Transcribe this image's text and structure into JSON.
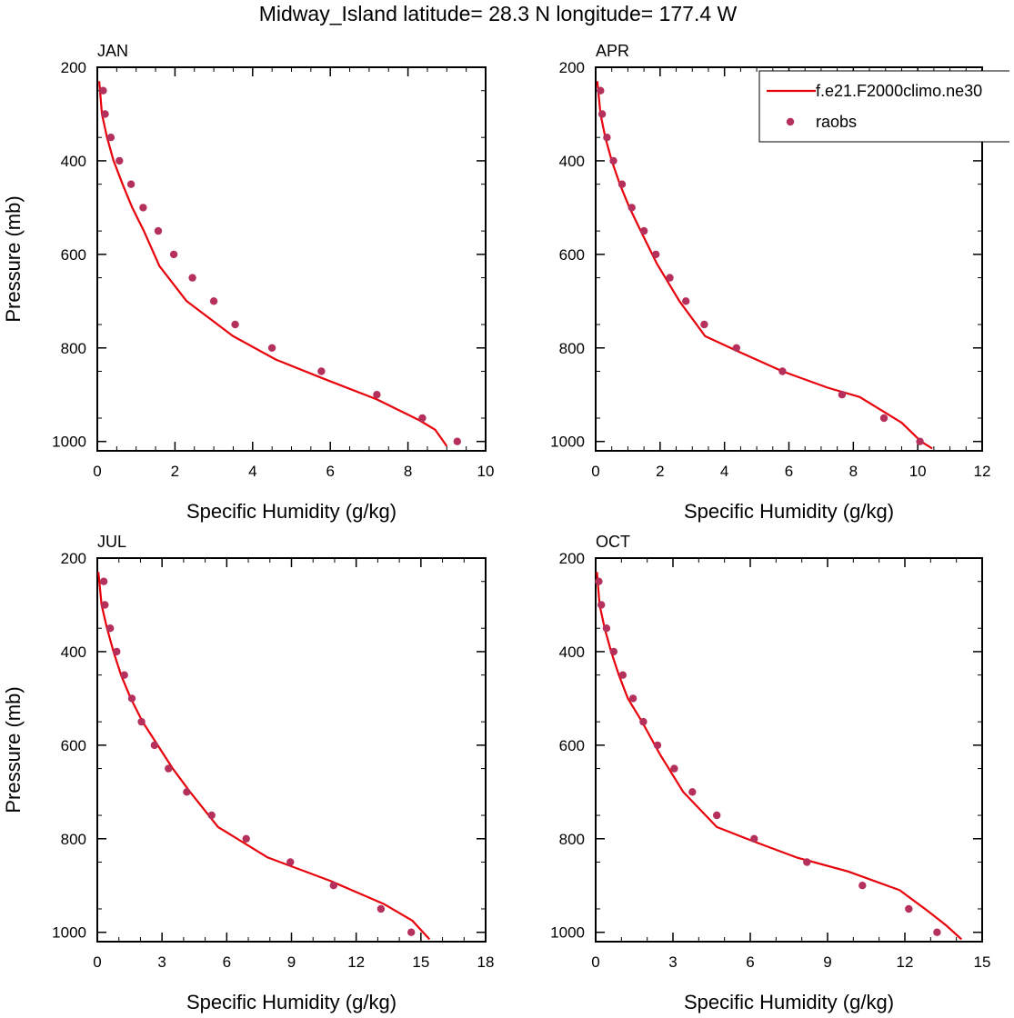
{
  "figure": {
    "title": "Midway_Island  latitude= 28.3 N longitude= 177.4 W"
  },
  "colors": {
    "model": "#e8000b",
    "obs": "#b5305a",
    "axis": "#000000"
  },
  "chart_data": [
    {
      "type": "line",
      "panel_label": "JAN",
      "xlabel": "Specific Humidity (g/kg)",
      "ylabel": "Pressure (mb)",
      "xlim": [
        0,
        10
      ],
      "xticks": [
        0,
        2,
        4,
        6,
        8,
        10
      ],
      "ylim": [
        1020,
        200
      ],
      "yticks": [
        200,
        400,
        600,
        800,
        1000
      ],
      "show_legend": false,
      "series": [
        {
          "name": "f.e21.F2000climo.ne30",
          "kind": "line",
          "x": [
            0.05,
            0.12,
            0.25,
            0.42,
            0.65,
            0.9,
            1.2,
            1.6,
            2.3,
            3.5,
            4.6,
            5.8,
            7.2,
            8.3,
            8.7,
            9.0
          ],
          "y": [
            230,
            300,
            350,
            400,
            450,
            500,
            550,
            625,
            700,
            775,
            825,
            865,
            910,
            955,
            975,
            1010
          ]
        },
        {
          "name": "raobs",
          "kind": "markers",
          "x": [
            0.15,
            0.2,
            0.35,
            0.57,
            0.87,
            1.18,
            1.57,
            1.97,
            2.45,
            3.0,
            3.55,
            4.5,
            5.77,
            7.2,
            8.37,
            9.27
          ],
          "y": [
            250,
            300,
            350,
            400,
            450,
            500,
            550,
            600,
            650,
            700,
            750,
            800,
            850,
            900,
            950,
            1000
          ]
        }
      ]
    },
    {
      "type": "line",
      "panel_label": "APR",
      "xlabel": "Specific Humidity (g/kg)",
      "ylabel": "",
      "xlim": [
        0,
        12
      ],
      "xticks": [
        0,
        2,
        4,
        6,
        8,
        10,
        12
      ],
      "ylim": [
        1020,
        200
      ],
      "yticks": [
        200,
        400,
        600,
        800,
        1000
      ],
      "show_legend": true,
      "series": [
        {
          "name": "f.e21.F2000climo.ne30",
          "kind": "line",
          "x": [
            0.05,
            0.15,
            0.3,
            0.5,
            0.75,
            1.05,
            1.4,
            1.9,
            2.6,
            3.4,
            4.5,
            5.8,
            7.2,
            8.2,
            9.5,
            10.1,
            10.45
          ],
          "y": [
            230,
            300,
            350,
            400,
            450,
            500,
            550,
            620,
            700,
            775,
            810,
            850,
            885,
            905,
            960,
            1000,
            1015
          ]
        },
        {
          "name": "raobs",
          "kind": "markers",
          "x": [
            0.15,
            0.2,
            0.35,
            0.55,
            0.82,
            1.12,
            1.5,
            1.87,
            2.3,
            2.8,
            3.37,
            4.37,
            5.8,
            7.65,
            8.95,
            10.07
          ],
          "y": [
            250,
            300,
            350,
            400,
            450,
            500,
            550,
            600,
            650,
            700,
            750,
            800,
            850,
            900,
            950,
            1000
          ]
        }
      ]
    },
    {
      "type": "line",
      "panel_label": "JUL",
      "xlabel": "Specific Humidity (g/kg)",
      "ylabel": "Pressure (mb)",
      "xlim": [
        0,
        18
      ],
      "xticks": [
        0,
        3,
        6,
        9,
        12,
        15,
        18
      ],
      "ylim": [
        1020,
        200
      ],
      "yticks": [
        200,
        400,
        600,
        800,
        1000
      ],
      "show_legend": false,
      "series": [
        {
          "name": "f.e21.F2000climo.ne30",
          "kind": "line",
          "x": [
            0.05,
            0.2,
            0.45,
            0.75,
            1.1,
            1.55,
            2.1,
            2.8,
            3.5,
            4.3,
            5.6,
            7.9,
            10.8,
            13.3,
            14.6,
            15.4
          ],
          "y": [
            230,
            300,
            350,
            400,
            450,
            500,
            550,
            600,
            650,
            700,
            775,
            840,
            890,
            940,
            975,
            1015
          ]
        },
        {
          "name": "raobs",
          "kind": "markers",
          "x": [
            0.3,
            0.35,
            0.6,
            0.9,
            1.25,
            1.6,
            2.05,
            2.65,
            3.3,
            4.15,
            5.3,
            6.9,
            8.95,
            10.95,
            13.15,
            14.55
          ],
          "y": [
            250,
            300,
            350,
            400,
            450,
            500,
            550,
            600,
            650,
            700,
            750,
            800,
            850,
            900,
            950,
            1000
          ]
        }
      ]
    },
    {
      "type": "line",
      "panel_label": "OCT",
      "xlabel": "Specific Humidity (g/kg)",
      "ylabel": "",
      "xlim": [
        0,
        15
      ],
      "xticks": [
        0,
        3,
        6,
        9,
        12,
        15
      ],
      "ylim": [
        1020,
        200
      ],
      "yticks": [
        200,
        400,
        600,
        800,
        1000
      ],
      "show_legend": false,
      "series": [
        {
          "name": "f.e21.F2000climo.ne30",
          "kind": "line",
          "x": [
            0.05,
            0.15,
            0.35,
            0.6,
            0.9,
            1.25,
            1.8,
            2.5,
            3.4,
            4.7,
            6.1,
            7.8,
            9.8,
            11.8,
            12.9,
            13.6,
            14.2
          ],
          "y": [
            230,
            300,
            350,
            400,
            450,
            500,
            550,
            620,
            700,
            775,
            805,
            840,
            870,
            910,
            955,
            985,
            1015
          ]
        },
        {
          "name": "raobs",
          "kind": "markers",
          "x": [
            0.12,
            0.22,
            0.42,
            0.7,
            1.05,
            1.45,
            1.85,
            2.4,
            3.05,
            3.75,
            4.7,
            6.15,
            8.2,
            10.35,
            12.15,
            13.25
          ],
          "y": [
            250,
            300,
            350,
            400,
            450,
            500,
            550,
            600,
            650,
            700,
            750,
            800,
            850,
            900,
            950,
            1000
          ]
        }
      ]
    }
  ]
}
